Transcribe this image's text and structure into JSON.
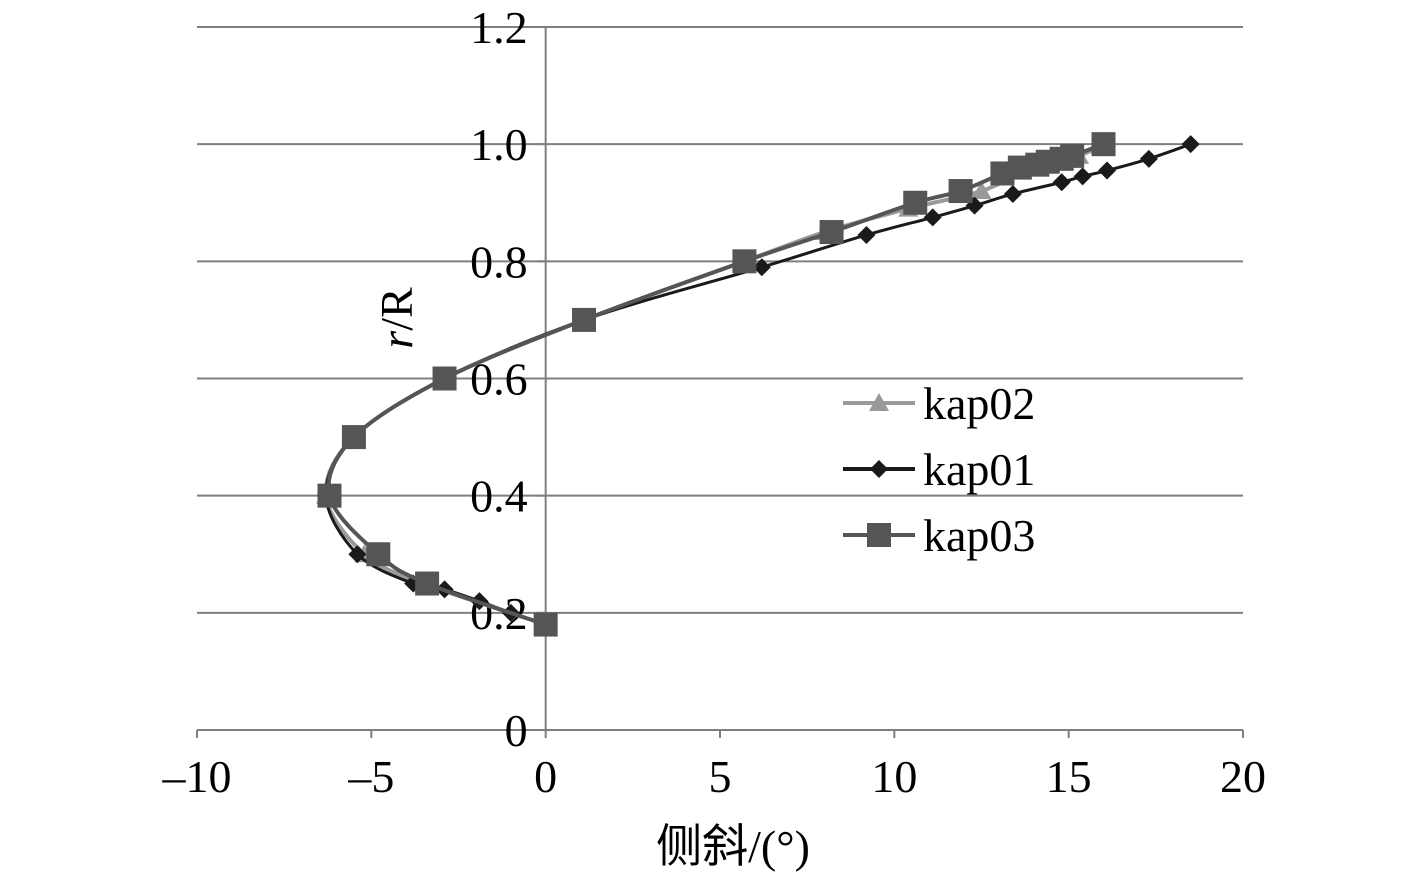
{
  "chart_data": {
    "type": "line",
    "title": "",
    "xlabel": "侧斜/(°)",
    "ylabel_italic": "r",
    "ylabel_rest": "/R",
    "xlim": [
      -10,
      20
    ],
    "ylim": [
      0,
      1.2
    ],
    "x_ticks": [
      -10,
      -5,
      0,
      5,
      10,
      15,
      20
    ],
    "x_tick_labels": [
      "–10",
      "–5",
      "0",
      "5",
      "10",
      "15",
      "20"
    ],
    "y_ticks": [
      0,
      0.2,
      0.4,
      0.6,
      0.8,
      1.0,
      1.2
    ],
    "y_tick_labels": [
      "0",
      "0.2",
      "0.4",
      "0.6",
      "0.8",
      "1.0",
      "1.2"
    ],
    "grid": "horizontal",
    "legend_position": "center-right",
    "series": [
      {
        "name": "kap02",
        "marker": "triangle",
        "color": "#9a9a9a",
        "x": [
          0,
          -3.5,
          -5.2,
          -6.3,
          -5.5,
          -2.9,
          1.1,
          5.7,
          8.0,
          10.4,
          12.5,
          14.0,
          15.3,
          16.0
        ],
        "y": [
          0.18,
          0.25,
          0.3,
          0.4,
          0.5,
          0.6,
          0.7,
          0.8,
          0.85,
          0.89,
          0.92,
          0.96,
          0.98,
          1.0
        ]
      },
      {
        "name": "kap01",
        "marker": "diamond",
        "color": "#1a1a1a",
        "x": [
          0,
          -1.0,
          -1.9,
          -2.9,
          -3.8,
          -5.4,
          -6.3,
          -5.5,
          -2.9,
          1.1,
          6.2,
          9.2,
          11.1,
          12.3,
          13.4,
          14.8,
          15.4,
          16.1,
          17.3,
          18.5
        ],
        "y": [
          0.18,
          0.2,
          0.22,
          0.24,
          0.25,
          0.3,
          0.4,
          0.5,
          0.6,
          0.7,
          0.79,
          0.845,
          0.875,
          0.895,
          0.915,
          0.935,
          0.945,
          0.955,
          0.975,
          1.0
        ]
      },
      {
        "name": "kap03",
        "marker": "square",
        "color": "#555555",
        "x": [
          0,
          -3.4,
          -4.8,
          -6.2,
          -5.5,
          -2.9,
          1.1,
          5.7,
          8.2,
          10.6,
          11.9,
          13.1,
          13.6,
          14.1,
          14.4,
          14.8,
          15.1,
          16.0
        ],
        "y": [
          0.18,
          0.25,
          0.3,
          0.4,
          0.5,
          0.6,
          0.7,
          0.8,
          0.85,
          0.9,
          0.92,
          0.95,
          0.96,
          0.965,
          0.97,
          0.975,
          0.98,
          1.0
        ]
      }
    ]
  }
}
